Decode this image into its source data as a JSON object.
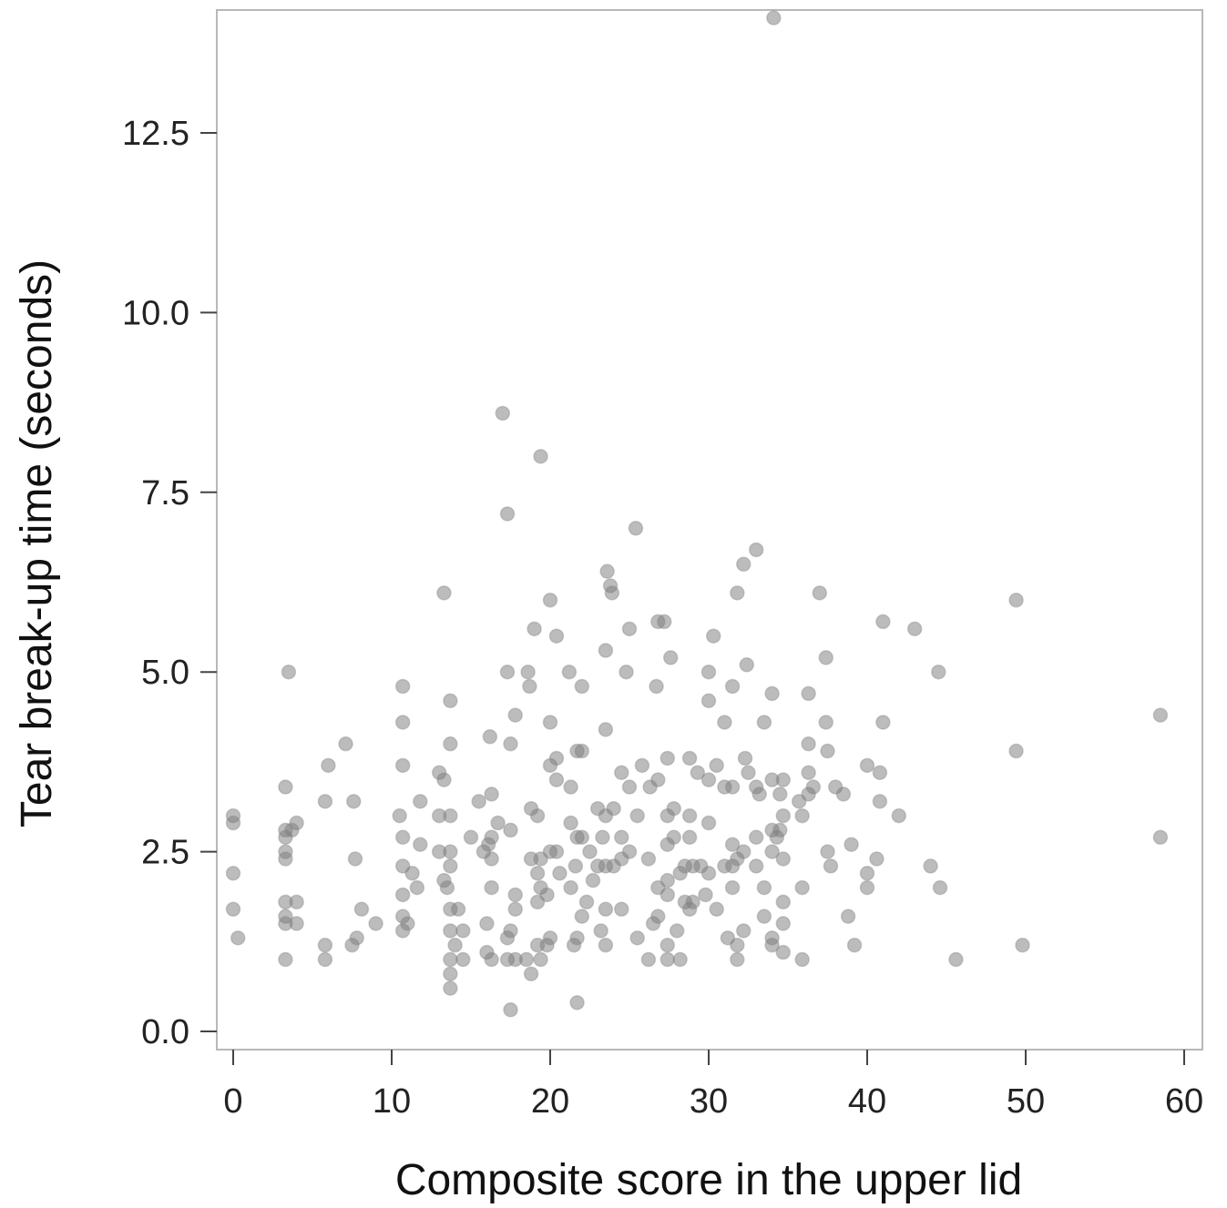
{
  "chart_data": {
    "type": "scatter",
    "xlabel": "Composite score in the upper lid",
    "ylabel": "Tear break-up time (seconds)",
    "xlim": [
      -1,
      61
    ],
    "ylim": [
      -0.3,
      14.2
    ],
    "xticks": [
      0,
      10,
      20,
      30,
      40,
      50,
      60
    ],
    "xtick_labels": [
      "0",
      "10",
      "20",
      "30",
      "40",
      "50",
      "60"
    ],
    "yticks": [
      0.0,
      2.5,
      5.0,
      7.5,
      10.0,
      12.5
    ],
    "ytick_labels": [
      "0.0",
      "2.5",
      "5.0",
      "7.5",
      "10.0",
      "12.5"
    ],
    "grid": false,
    "point_color": "#7a7a7a",
    "points": [
      [
        0,
        3.0
      ],
      [
        0,
        2.9
      ],
      [
        0,
        2.2
      ],
      [
        0,
        1.7
      ],
      [
        0.3,
        1.3
      ],
      [
        3.3,
        3.4
      ],
      [
        3.3,
        2.8
      ],
      [
        3.3,
        2.7
      ],
      [
        3.3,
        2.5
      ],
      [
        3.3,
        2.4
      ],
      [
        3.3,
        1.8
      ],
      [
        3.3,
        1.6
      ],
      [
        3.3,
        1.5
      ],
      [
        3.3,
        1.0
      ],
      [
        3.5,
        5.0
      ],
      [
        4,
        1.8
      ],
      [
        4,
        1.5
      ],
      [
        4,
        2.9
      ],
      [
        3.7,
        2.8
      ],
      [
        5.8,
        1.2
      ],
      [
        5.8,
        1.0
      ],
      [
        5.8,
        3.2
      ],
      [
        6,
        3.7
      ],
      [
        7.1,
        4.0
      ],
      [
        7.5,
        1.2
      ],
      [
        7.6,
        3.2
      ],
      [
        7.7,
        2.4
      ],
      [
        7.8,
        1.3
      ],
      [
        8.1,
        1.7
      ],
      [
        9,
        1.5
      ],
      [
        10.5,
        3.0
      ],
      [
        10.7,
        4.8
      ],
      [
        10.7,
        4.3
      ],
      [
        10.7,
        3.7
      ],
      [
        10.7,
        2.7
      ],
      [
        10.7,
        2.3
      ],
      [
        10.7,
        1.9
      ],
      [
        10.7,
        1.6
      ],
      [
        10.7,
        1.4
      ],
      [
        11,
        1.5
      ],
      [
        11.3,
        2.2
      ],
      [
        11.6,
        2.0
      ],
      [
        11.8,
        3.2
      ],
      [
        11.8,
        2.6
      ],
      [
        13,
        3.6
      ],
      [
        13,
        3.0
      ],
      [
        13,
        2.5
      ],
      [
        13.3,
        6.1
      ],
      [
        13.3,
        3.5
      ],
      [
        13.3,
        2.1
      ],
      [
        13.5,
        2.0
      ],
      [
        13.7,
        4.6
      ],
      [
        13.7,
        4.0
      ],
      [
        13.7,
        3.0
      ],
      [
        13.7,
        2.5
      ],
      [
        13.7,
        2.3
      ],
      [
        13.7,
        1.7
      ],
      [
        13.7,
        1.4
      ],
      [
        13.7,
        1.0
      ],
      [
        13.7,
        0.8
      ],
      [
        13.7,
        0.6
      ],
      [
        14,
        1.2
      ],
      [
        14.2,
        1.7
      ],
      [
        14.5,
        1.4
      ],
      [
        14.5,
        1.0
      ],
      [
        15,
        2.7
      ],
      [
        15.5,
        3.2
      ],
      [
        15.8,
        2.5
      ],
      [
        16,
        1.5
      ],
      [
        16,
        1.1
      ],
      [
        16.1,
        2.6
      ],
      [
        16.2,
        4.1
      ],
      [
        16.3,
        3.3
      ],
      [
        16.3,
        2.7
      ],
      [
        16.3,
        2.4
      ],
      [
        16.3,
        2.0
      ],
      [
        16.3,
        1.0
      ],
      [
        16.7,
        2.9
      ],
      [
        17,
        8.6
      ],
      [
        17.3,
        7.2
      ],
      [
        17.3,
        5.0
      ],
      [
        17.3,
        1.3
      ],
      [
        17.3,
        1.0
      ],
      [
        17.5,
        4.0
      ],
      [
        17.5,
        2.8
      ],
      [
        17.5,
        1.4
      ],
      [
        17.5,
        0.3
      ],
      [
        17.8,
        4.4
      ],
      [
        17.8,
        1.9
      ],
      [
        17.8,
        1.7
      ],
      [
        17.8,
        1.0
      ],
      [
        18.5,
        1.0
      ],
      [
        18.6,
        5.0
      ],
      [
        18.7,
        4.8
      ],
      [
        18.8,
        3.1
      ],
      [
        18.8,
        2.4
      ],
      [
        18.8,
        0.8
      ],
      [
        19,
        5.6
      ],
      [
        19.2,
        3.0
      ],
      [
        19.2,
        2.2
      ],
      [
        19.2,
        1.8
      ],
      [
        19.2,
        1.2
      ],
      [
        19.4,
        8.0
      ],
      [
        19.4,
        2.4
      ],
      [
        19.4,
        2.0
      ],
      [
        19.4,
        1.0
      ],
      [
        19.8,
        1.9
      ],
      [
        19.8,
        1.2
      ],
      [
        20,
        6.0
      ],
      [
        20,
        4.3
      ],
      [
        20,
        3.7
      ],
      [
        20,
        2.5
      ],
      [
        20,
        1.3
      ],
      [
        20.4,
        5.5
      ],
      [
        20.4,
        3.8
      ],
      [
        20.4,
        3.5
      ],
      [
        20.4,
        2.5
      ],
      [
        20.6,
        2.2
      ],
      [
        21.2,
        5.0
      ],
      [
        21.3,
        3.4
      ],
      [
        21.3,
        2.9
      ],
      [
        21.3,
        2.0
      ],
      [
        21.5,
        1.2
      ],
      [
        21.6,
        2.3
      ],
      [
        21.7,
        3.9
      ],
      [
        21.7,
        2.7
      ],
      [
        21.7,
        1.3
      ],
      [
        21.7,
        0.4
      ],
      [
        22,
        4.8
      ],
      [
        22,
        3.9
      ],
      [
        22,
        2.7
      ],
      [
        22,
        1.6
      ],
      [
        22.3,
        1.8
      ],
      [
        22.5,
        2.5
      ],
      [
        22.7,
        2.1
      ],
      [
        23,
        3.1
      ],
      [
        23,
        2.3
      ],
      [
        23.2,
        1.4
      ],
      [
        23.3,
        2.7
      ],
      [
        23.5,
        5.3
      ],
      [
        23.5,
        4.2
      ],
      [
        23.5,
        3.0
      ],
      [
        23.5,
        2.3
      ],
      [
        23.5,
        1.7
      ],
      [
        23.5,
        1.2
      ],
      [
        23.6,
        6.4
      ],
      [
        23.8,
        6.2
      ],
      [
        23.9,
        6.1
      ],
      [
        24,
        3.1
      ],
      [
        24,
        2.3
      ],
      [
        24.5,
        3.6
      ],
      [
        24.5,
        2.7
      ],
      [
        24.5,
        2.4
      ],
      [
        24.5,
        1.7
      ],
      [
        24.8,
        5.0
      ],
      [
        25,
        5.6
      ],
      [
        25,
        3.4
      ],
      [
        25,
        2.5
      ],
      [
        25.4,
        7.0
      ],
      [
        25.5,
        3.0
      ],
      [
        25.5,
        1.3
      ],
      [
        25.8,
        3.7
      ],
      [
        26.2,
        2.4
      ],
      [
        26.2,
        1.0
      ],
      [
        26.3,
        3.4
      ],
      [
        26.5,
        1.5
      ],
      [
        26.7,
        4.8
      ],
      [
        26.8,
        5.7
      ],
      [
        26.8,
        3.5
      ],
      [
        26.8,
        2.0
      ],
      [
        26.8,
        1.6
      ],
      [
        27.2,
        5.7
      ],
      [
        27.4,
        3.8
      ],
      [
        27.4,
        3.0
      ],
      [
        27.4,
        2.6
      ],
      [
        27.4,
        2.1
      ],
      [
        27.4,
        1.9
      ],
      [
        27.4,
        1.2
      ],
      [
        27.4,
        1.0
      ],
      [
        27.6,
        5.2
      ],
      [
        27.8,
        3.1
      ],
      [
        27.8,
        2.7
      ],
      [
        28,
        1.4
      ],
      [
        28.2,
        2.2
      ],
      [
        28.2,
        1.0
      ],
      [
        28.5,
        2.3
      ],
      [
        28.5,
        1.8
      ],
      [
        28.8,
        3.8
      ],
      [
        28.8,
        3.0
      ],
      [
        28.8,
        2.7
      ],
      [
        28.8,
        1.7
      ],
      [
        29,
        2.3
      ],
      [
        29,
        1.8
      ],
      [
        29.3,
        3.6
      ],
      [
        29.5,
        2.3
      ],
      [
        29.8,
        1.9
      ],
      [
        30,
        5.0
      ],
      [
        30,
        4.6
      ],
      [
        30,
        3.5
      ],
      [
        30,
        2.9
      ],
      [
        30,
        2.2
      ],
      [
        30.3,
        5.5
      ],
      [
        30.5,
        3.7
      ],
      [
        30.5,
        1.7
      ],
      [
        31,
        4.3
      ],
      [
        31,
        3.4
      ],
      [
        31,
        2.3
      ],
      [
        31.2,
        1.3
      ],
      [
        31.5,
        4.8
      ],
      [
        31.5,
        3.4
      ],
      [
        31.5,
        2.6
      ],
      [
        31.5,
        2.3
      ],
      [
        31.5,
        2.0
      ],
      [
        31.8,
        6.1
      ],
      [
        31.8,
        2.4
      ],
      [
        31.8,
        1.2
      ],
      [
        31.8,
        1.0
      ],
      [
        32.2,
        6.5
      ],
      [
        32.2,
        2.5
      ],
      [
        32.2,
        1.4
      ],
      [
        32.3,
        3.8
      ],
      [
        32.4,
        5.1
      ],
      [
        32.5,
        3.6
      ],
      [
        33,
        6.7
      ],
      [
        33,
        3.4
      ],
      [
        33,
        2.7
      ],
      [
        33,
        2.3
      ],
      [
        33.2,
        3.3
      ],
      [
        33.5,
        4.3
      ],
      [
        33.5,
        2.0
      ],
      [
        33.5,
        1.6
      ],
      [
        34,
        4.7
      ],
      [
        34,
        3.5
      ],
      [
        34,
        2.8
      ],
      [
        34,
        2.5
      ],
      [
        34,
        1.3
      ],
      [
        34,
        1.2
      ],
      [
        34.1,
        14.1
      ],
      [
        34.3,
        2.7
      ],
      [
        34.5,
        3.3
      ],
      [
        34.5,
        2.8
      ],
      [
        34.7,
        3.5
      ],
      [
        34.7,
        3.0
      ],
      [
        34.7,
        2.4
      ],
      [
        34.7,
        1.8
      ],
      [
        34.7,
        1.5
      ],
      [
        34.7,
        1.1
      ],
      [
        35.7,
        3.2
      ],
      [
        35.9,
        3.0
      ],
      [
        35.9,
        2.0
      ],
      [
        35.9,
        1.0
      ],
      [
        36.3,
        4.7
      ],
      [
        36.3,
        4.0
      ],
      [
        36.3,
        3.6
      ],
      [
        36.3,
        3.3
      ],
      [
        36.6,
        3.4
      ],
      [
        37,
        6.1
      ],
      [
        37.4,
        5.2
      ],
      [
        37.4,
        4.3
      ],
      [
        37.5,
        3.9
      ],
      [
        37.5,
        2.5
      ],
      [
        37.7,
        2.3
      ],
      [
        38,
        3.4
      ],
      [
        38.5,
        3.3
      ],
      [
        38.8,
        1.6
      ],
      [
        39,
        2.6
      ],
      [
        39.2,
        1.2
      ],
      [
        40,
        3.7
      ],
      [
        40,
        2.2
      ],
      [
        40,
        2.0
      ],
      [
        40.6,
        2.4
      ],
      [
        40.8,
        3.6
      ],
      [
        40.8,
        3.2
      ],
      [
        41,
        5.7
      ],
      [
        41,
        4.3
      ],
      [
        42,
        3.0
      ],
      [
        43,
        5.6
      ],
      [
        44,
        2.3
      ],
      [
        44.5,
        5.0
      ],
      [
        44.6,
        2.0
      ],
      [
        45.6,
        1.0
      ],
      [
        49.4,
        6.0
      ],
      [
        49.4,
        3.9
      ],
      [
        49.8,
        1.2
      ],
      [
        58.5,
        4.4
      ],
      [
        58.5,
        2.7
      ]
    ]
  }
}
